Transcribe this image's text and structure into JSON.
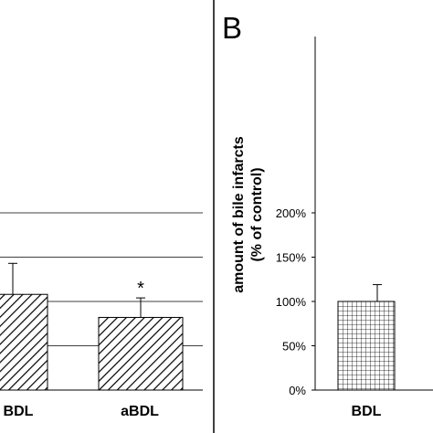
{
  "chart_data": [
    {
      "type": "bar",
      "panel": "A",
      "categories": [
        "BDL",
        "aBDL"
      ],
      "values": [
        108,
        82
      ],
      "errors": [
        35,
        22
      ],
      "significance": [
        "",
        "*"
      ],
      "ylim": [
        0,
        200
      ],
      "gridlines": [
        50,
        100,
        150,
        200
      ],
      "grid": true,
      "fill_patterns": [
        "diagonal-hatch",
        "diagonal-hatch"
      ]
    },
    {
      "type": "bar",
      "panel": "B",
      "panel_label": "B",
      "categories": [
        "BDL"
      ],
      "values": [
        100
      ],
      "errors": [
        19
      ],
      "ylim": [
        0,
        200
      ],
      "yticks": [
        "0%",
        "50%",
        "100%",
        "150%",
        "200%"
      ],
      "ylabel_line1": "amount of bile infarcts",
      "ylabel_line2": "(% of control)",
      "grid": false,
      "fill_patterns": [
        "grid-hatch"
      ]
    }
  ]
}
